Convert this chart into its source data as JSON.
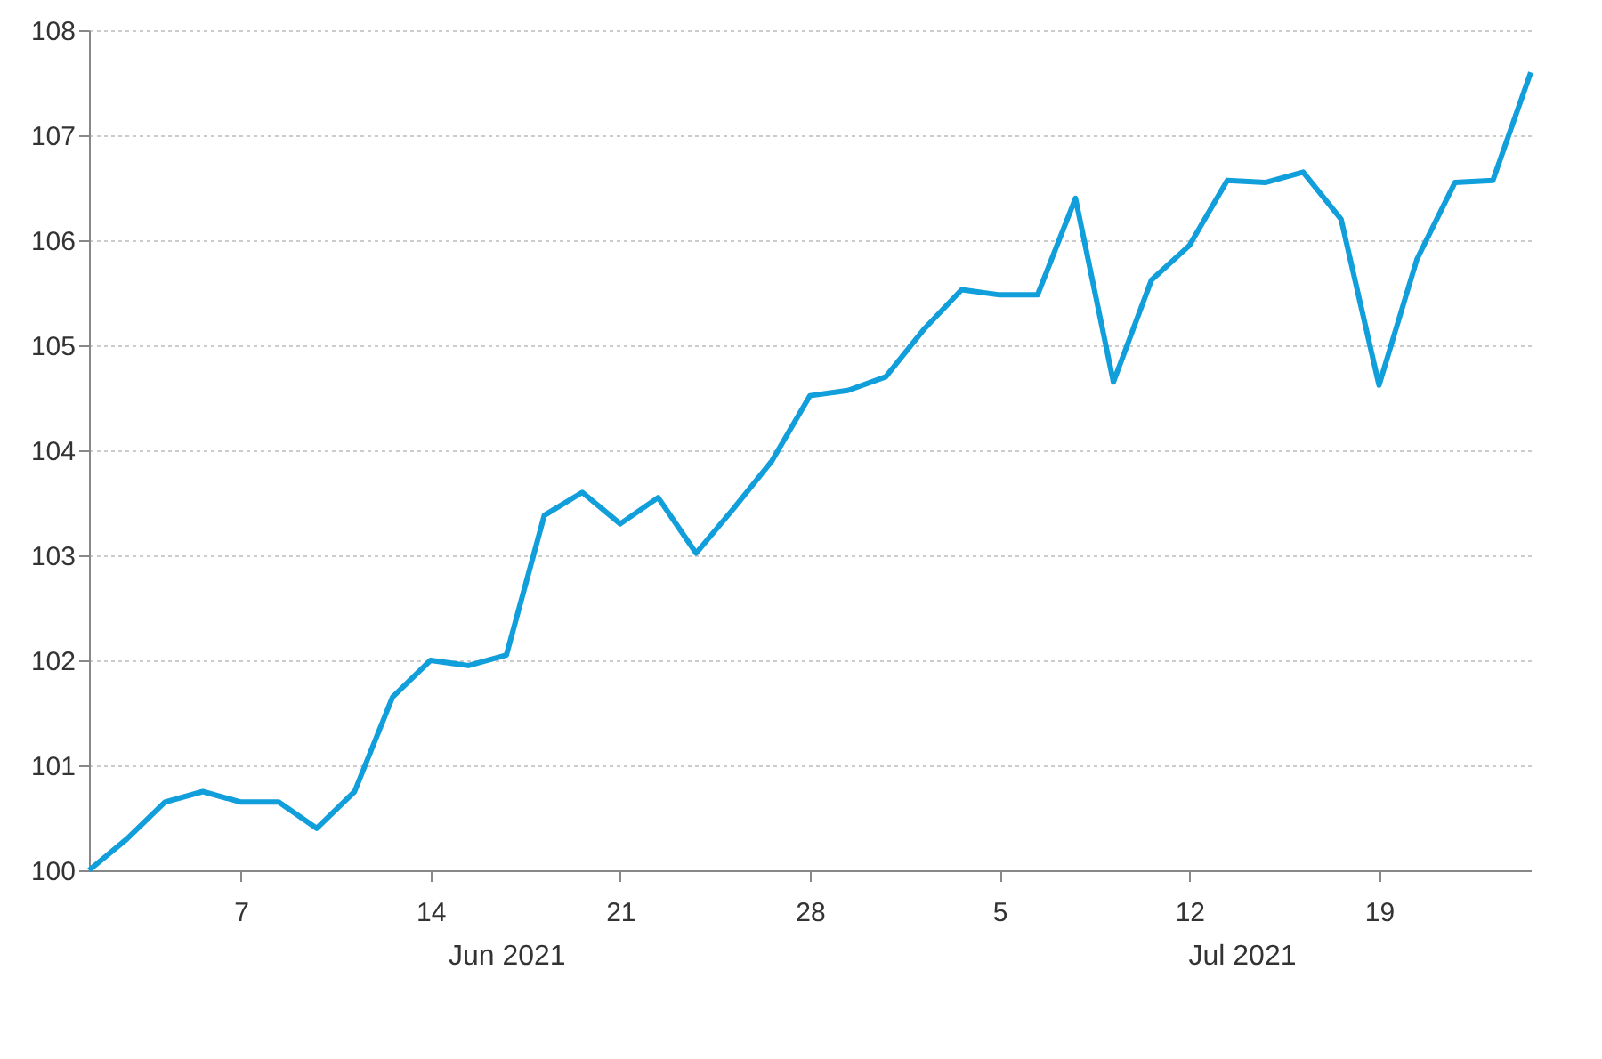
{
  "chart_data": {
    "type": "line",
    "categories": [
      null,
      null,
      null,
      null,
      "7",
      null,
      null,
      null,
      null,
      "14",
      null,
      null,
      null,
      null,
      "21",
      null,
      null,
      null,
      null,
      "28",
      null,
      null,
      null,
      null,
      "5",
      null,
      null,
      null,
      null,
      "12",
      null,
      null,
      null,
      null,
      "19",
      null,
      null,
      null,
      null
    ],
    "series": [
      {
        "color": "#119fdb",
        "values": [
          100.0,
          100.3,
          100.65,
          100.75,
          100.65,
          100.65,
          100.4,
          100.75,
          101.65,
          102.0,
          101.95,
          102.05,
          103.38,
          103.6,
          103.3,
          103.55,
          103.02,
          103.45,
          103.9,
          104.52,
          104.57,
          104.7,
          105.15,
          105.53,
          105.48,
          105.48,
          106.4,
          104.65,
          105.62,
          105.95,
          106.57,
          106.55,
          106.65,
          106.2,
          104.62,
          105.82,
          106.55,
          106.57,
          107.6
        ]
      }
    ],
    "ylim": [
      100,
      108
    ],
    "yticks": [
      100,
      101,
      102,
      103,
      104,
      105,
      106,
      107,
      108
    ],
    "grid": "y",
    "annotations": [
      "Jun 2021",
      "Jul 2021"
    ]
  }
}
